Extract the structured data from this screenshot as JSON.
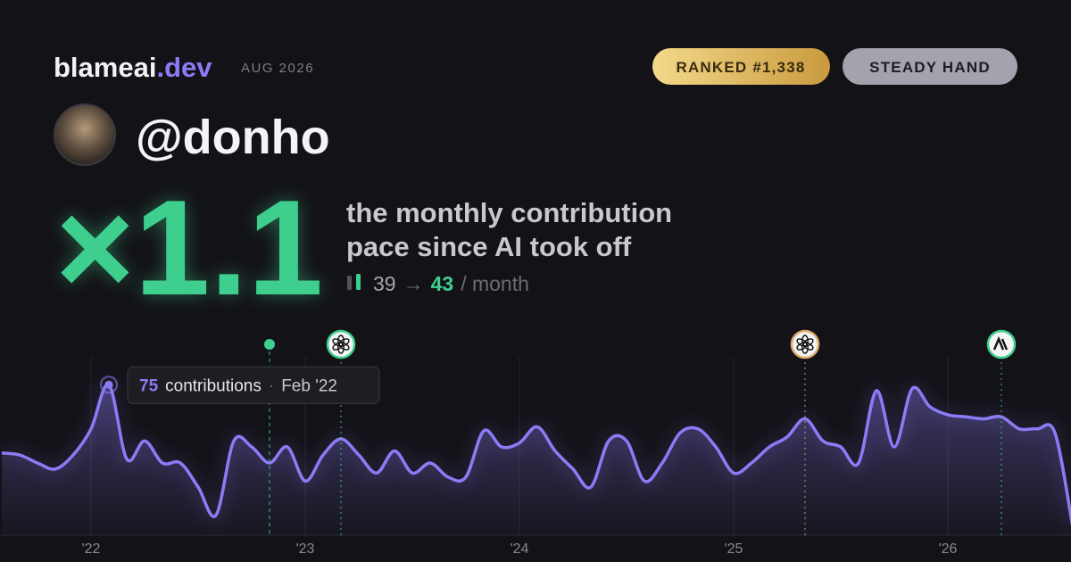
{
  "header": {
    "brand": "blameai",
    "brand_suffix": ".dev",
    "period": "AUG 2026",
    "badges": [
      "RANKED #1,338",
      "STEADY HAND"
    ],
    "handle": "@donho"
  },
  "headline": {
    "multiplier": "×1.1",
    "description": [
      "the monthly contribution",
      "pace since AI took off"
    ],
    "before": 39,
    "arrow": "→",
    "after": 43,
    "unit": "/ month"
  },
  "chart_data": {
    "type": "line",
    "x": [
      "2021-08",
      "2021-09",
      "2021-10",
      "2021-11",
      "2021-12",
      "2022-01",
      "2022-02",
      "2022-03",
      "2022-04",
      "2022-05",
      "2022-06",
      "2022-07",
      "2022-08",
      "2022-09",
      "2022-10",
      "2022-11",
      "2022-12",
      "2023-01",
      "2023-02",
      "2023-03",
      "2023-04",
      "2023-05",
      "2023-06",
      "2023-07",
      "2023-08",
      "2023-09",
      "2023-10",
      "2023-11",
      "2023-12",
      "2024-01",
      "2024-02",
      "2024-03",
      "2024-04",
      "2024-05",
      "2024-06",
      "2024-07",
      "2024-08",
      "2024-09",
      "2024-10",
      "2024-11",
      "2024-12",
      "2025-01",
      "2025-02",
      "2025-03",
      "2025-04",
      "2025-05",
      "2025-06",
      "2025-07",
      "2025-08",
      "2025-09",
      "2025-10",
      "2025-11",
      "2025-12",
      "2026-01",
      "2026-02",
      "2026-03",
      "2026-04",
      "2026-05",
      "2026-06",
      "2026-07",
      "2026-08"
    ],
    "series": [
      {
        "name": "contributions",
        "color": "#8b7cf6",
        "values": [
          41,
          40,
          36,
          33,
          40,
          53,
          75,
          38,
          47,
          36,
          36,
          24,
          10,
          47,
          44,
          36,
          44,
          27,
          40,
          48,
          40,
          31,
          42,
          31,
          36,
          29,
          29,
          52,
          44,
          46,
          54,
          42,
          33,
          24,
          47,
          47,
          27,
          36,
          51,
          53,
          44,
          31,
          36,
          44,
          49,
          58,
          47,
          44,
          36,
          72,
          44,
          73,
          64,
          60,
          59,
          58,
          59,
          53,
          53,
          51,
          4
        ]
      }
    ],
    "xlim": [
      "2021-08",
      "2026-08"
    ],
    "xticks": [
      {
        "value": "2022-01",
        "label": "'22"
      },
      {
        "value": "2023-01",
        "label": "'23"
      },
      {
        "value": "2024-01",
        "label": "'24"
      },
      {
        "value": "2025-01",
        "label": "'25"
      },
      {
        "value": "2026-01",
        "label": "'26"
      }
    ],
    "ylim": [
      0,
      80
    ],
    "events": [
      "2022-11",
      "2023-03",
      "2025-05",
      "2026-04"
    ],
    "tooltip": {
      "index": 6,
      "unit": "contributions",
      "date": "Feb '22"
    }
  }
}
